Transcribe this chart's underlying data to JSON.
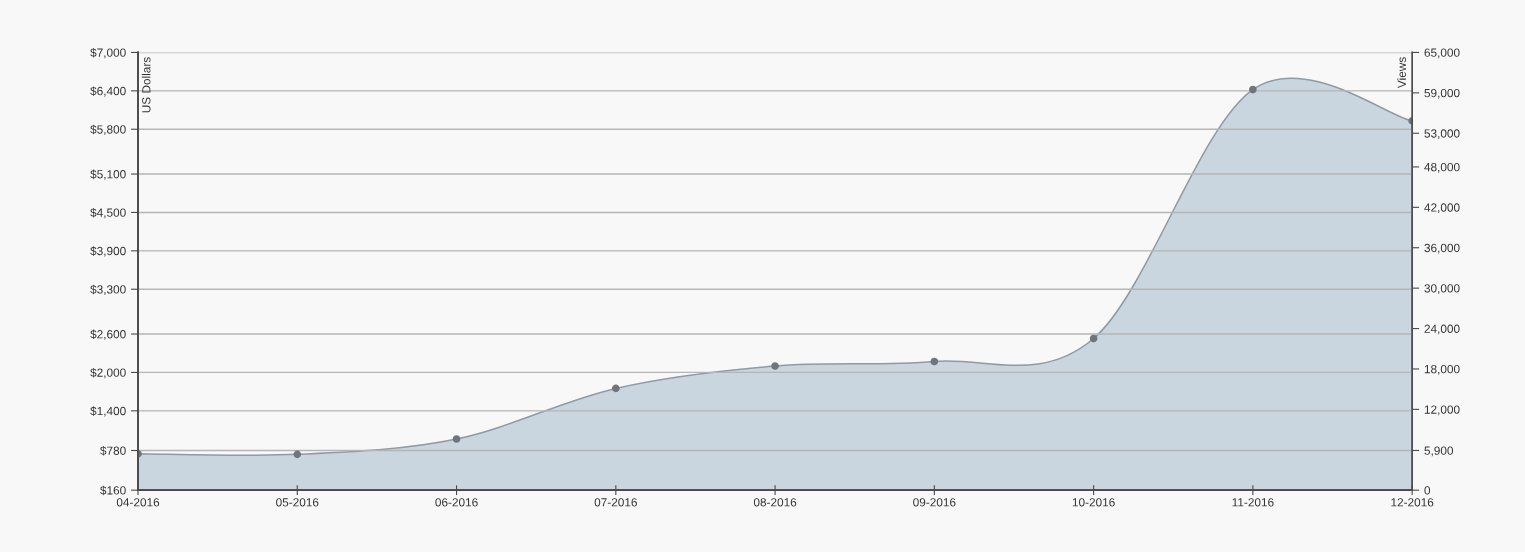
{
  "chart_data": {
    "type": "area",
    "categories": [
      "04-2016",
      "05-2016",
      "06-2016",
      "07-2016",
      "08-2016",
      "09-2016",
      "10-2016",
      "11-2016",
      "12-2016"
    ],
    "series": [
      {
        "color": "#c9d6df",
        "values": [
          730,
          720,
          960,
          1750,
          2100,
          2170,
          2530,
          6420,
          5930
        ]
      }
    ],
    "ylabel": "US Dollars",
    "y2label": "Views",
    "ylim": [
      160,
      7000
    ],
    "yticks": [
      {
        "value": 160,
        "label": "$160"
      },
      {
        "value": 780,
        "label": "$780"
      },
      {
        "value": 1400,
        "label": "$1,400"
      },
      {
        "value": 2000,
        "label": "$2,000"
      },
      {
        "value": 2600,
        "label": "$2,600"
      },
      {
        "value": 3300,
        "label": "$3,300"
      },
      {
        "value": 3900,
        "label": "$3,900"
      },
      {
        "value": 4500,
        "label": "$4,500"
      },
      {
        "value": 5100,
        "label": "$5,100"
      },
      {
        "value": 5800,
        "label": "$5,800"
      },
      {
        "value": 6400,
        "label": "$6,400"
      },
      {
        "value": 7000,
        "label": "$7,000"
      }
    ],
    "y2lim": [
      0,
      65000
    ],
    "y2ticks": [
      0,
      {
        "value": 5900,
        "label": "5,900"
      },
      {
        "value": 12000,
        "label": "12,000"
      },
      {
        "value": 18000,
        "label": "18,000"
      },
      {
        "value": 24000,
        "label": "24,000"
      },
      {
        "value": 30000,
        "label": "30,000"
      },
      {
        "value": 36000,
        "label": "36,000"
      },
      {
        "value": 42000,
        "label": "42,000"
      },
      {
        "value": 48000,
        "label": "48,000"
      },
      {
        "value": 53000,
        "label": "53,000"
      },
      {
        "value": 59000,
        "label": "59,000"
      },
      {
        "value": 65000,
        "label": "65,000"
      }
    ],
    "grid": "y",
    "marker": "circle"
  }
}
